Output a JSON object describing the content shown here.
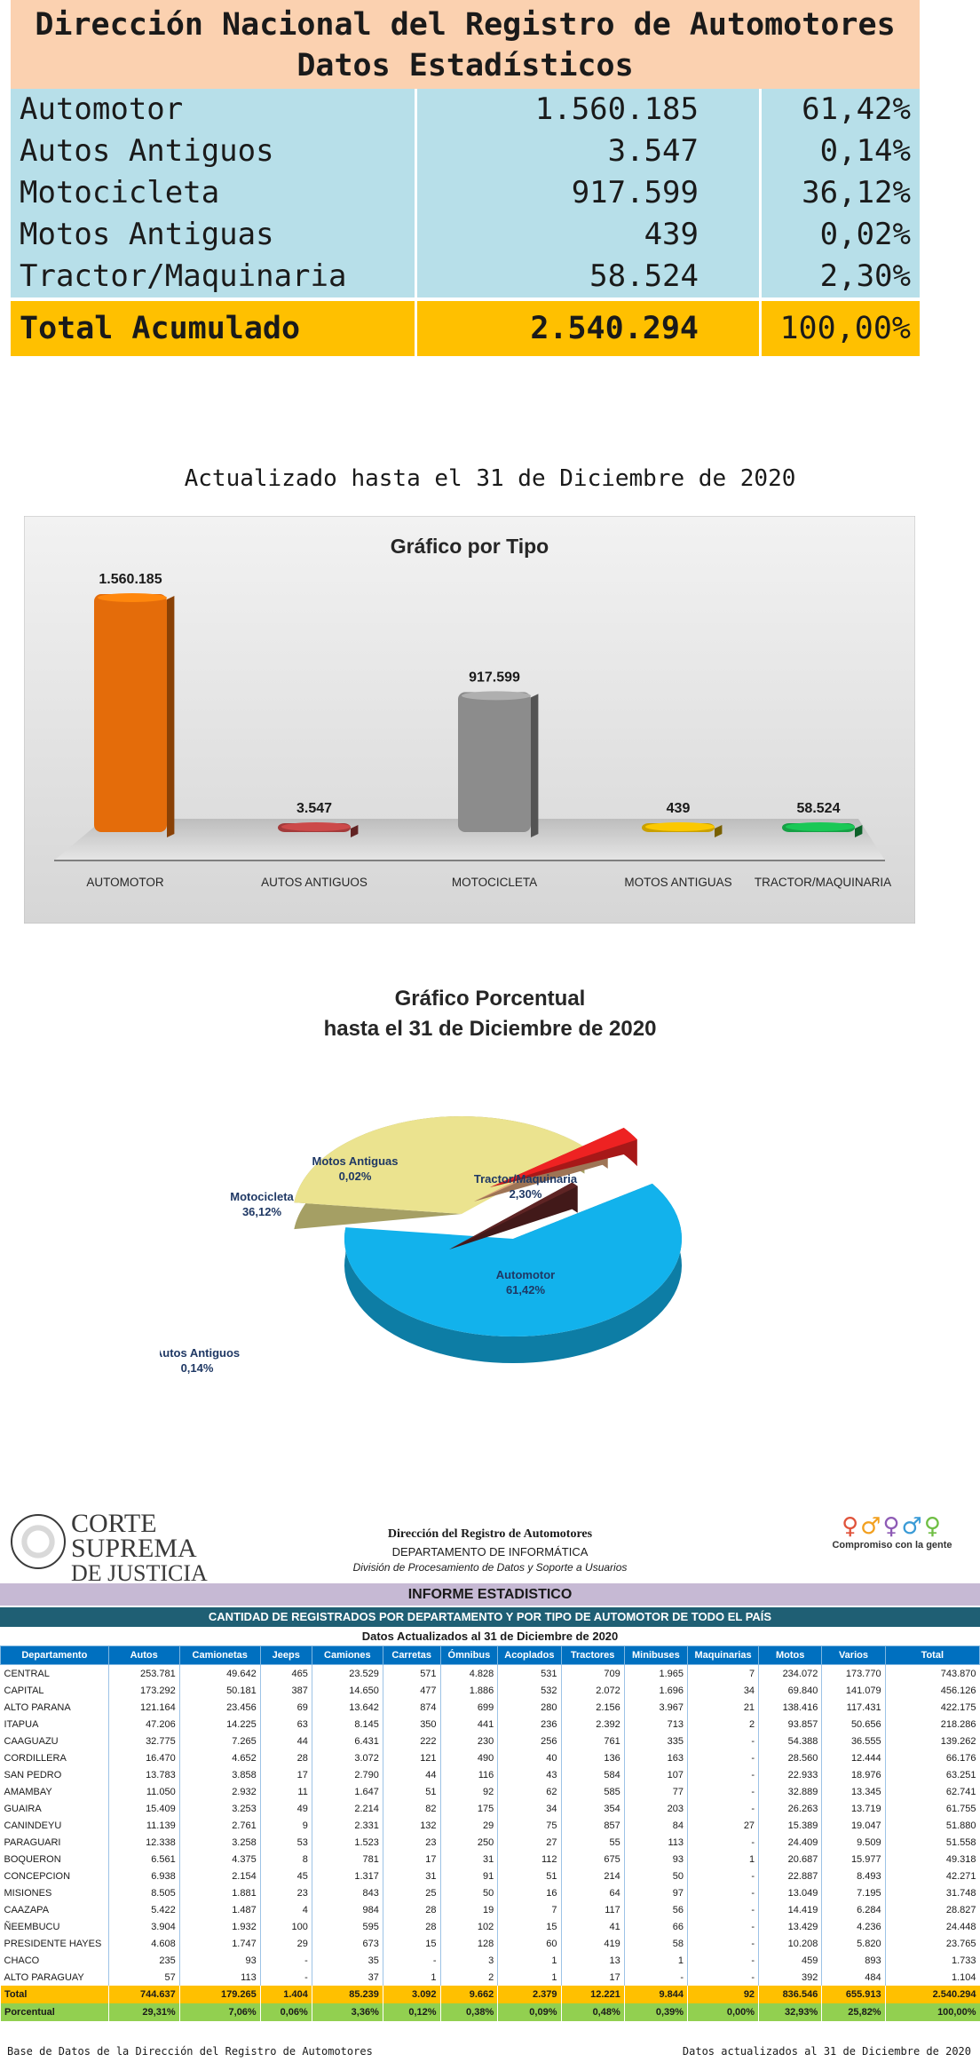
{
  "summary": {
    "title1": "Dirección Nacional del Registro de Automotores",
    "title2": "Datos Estadísticos",
    "rows": [
      {
        "label": "Automotor",
        "value": "1.560.185",
        "pct": "61,42%"
      },
      {
        "label": "Autos Antiguos",
        "value": "3.547",
        "pct": "0,14%"
      },
      {
        "label": "Motocicleta",
        "value": "917.599",
        "pct": "36,12%"
      },
      {
        "label": "Motos Antiguas",
        "value": "439",
        "pct": "0,02%"
      },
      {
        "label": "Tractor/Maquinaria",
        "value": "58.524",
        "pct": "2,30%"
      }
    ],
    "total": {
      "label": "Total Acumulado",
      "value": "2.540.294",
      "pct": "100,00%"
    }
  },
  "updated_text": "Actualizado hasta el 31 de Diciembre de 2020",
  "chart_data": [
    {
      "type": "bar",
      "title": "Gráfico por Tipo",
      "categories": [
        "AUTOMOTOR",
        "AUTOS ANTIGUOS",
        "MOTOCICLETA",
        "MOTOS ANTIGUAS",
        "TRACTOR/MAQUINARIA"
      ],
      "values": [
        1560185,
        3547,
        917599,
        439,
        58524
      ],
      "value_labels": [
        "1.560.185",
        "3.547",
        "917.599",
        "439",
        "58.524"
      ],
      "colors": [
        "#e46c0a",
        "#a33a3a",
        "#8c8c8c",
        "#c9a000",
        "#15a045"
      ],
      "ylim": [
        0,
        1560185
      ],
      "grid": false,
      "legend": "none"
    },
    {
      "type": "pie",
      "title_line1": "Gráfico Porcentual",
      "title_line2": "hasta el 31 de Diciembre de 2020",
      "slices": [
        {
          "label": "Automotor",
          "pct_label": "61,42%",
          "value": 61.42,
          "color": "#12b2ec"
        },
        {
          "label": "Motocicleta",
          "pct_label": "36,12%",
          "value": 36.12,
          "color": "#ebe38f"
        },
        {
          "label": "Autos Antiguos",
          "pct_label": "0,14%",
          "value": 0.14,
          "color": "#5e2424"
        },
        {
          "label": "Motos Antiguas",
          "pct_label": "0,02%",
          "value": 0.02,
          "color": "#e2a67a"
        },
        {
          "label": "Tractor/Maquinaria",
          "pct_label": "2,30%",
          "value": 2.3,
          "color": "#ee2222"
        }
      ]
    },
    {
      "type": "table",
      "columns": [
        "Departamento",
        "Autos",
        "Camionetas",
        "Jeeps",
        "Camiones",
        "Carretas",
        "Ómnibus",
        "Acoplados",
        "Tractores",
        "Minibuses",
        "Maquinarias",
        "Motos",
        "Varios",
        "Total"
      ],
      "rows": [
        [
          "CENTRAL",
          "253.781",
          "49.642",
          "465",
          "23.529",
          "571",
          "4.828",
          "531",
          "709",
          "1.965",
          "7",
          "234.072",
          "173.770",
          "743.870"
        ],
        [
          "CAPITAL",
          "173.292",
          "50.181",
          "387",
          "14.650",
          "477",
          "1.886",
          "532",
          "2.072",
          "1.696",
          "34",
          "69.840",
          "141.079",
          "456.126"
        ],
        [
          "ALTO PARANA",
          "121.164",
          "23.456",
          "69",
          "13.642",
          "874",
          "699",
          "280",
          "2.156",
          "3.967",
          "21",
          "138.416",
          "117.431",
          "422.175"
        ],
        [
          "ITAPUA",
          "47.206",
          "14.225",
          "63",
          "8.145",
          "350",
          "441",
          "236",
          "2.392",
          "713",
          "2",
          "93.857",
          "50.656",
          "218.286"
        ],
        [
          "CAAGUAZU",
          "32.775",
          "7.265",
          "44",
          "6.431",
          "222",
          "230",
          "256",
          "761",
          "335",
          "-",
          "54.388",
          "36.555",
          "139.262"
        ],
        [
          "CORDILLERA",
          "16.470",
          "4.652",
          "28",
          "3.072",
          "121",
          "490",
          "40",
          "136",
          "163",
          "-",
          "28.560",
          "12.444",
          "66.176"
        ],
        [
          "SAN PEDRO",
          "13.783",
          "3.858",
          "17",
          "2.790",
          "44",
          "116",
          "43",
          "584",
          "107",
          "-",
          "22.933",
          "18.976",
          "63.251"
        ],
        [
          "AMAMBAY",
          "11.050",
          "2.932",
          "11",
          "1.647",
          "51",
          "92",
          "62",
          "585",
          "77",
          "-",
          "32.889",
          "13.345",
          "62.741"
        ],
        [
          "GUAIRA",
          "15.409",
          "3.253",
          "49",
          "2.214",
          "82",
          "175",
          "34",
          "354",
          "203",
          "-",
          "26.263",
          "13.719",
          "61.755"
        ],
        [
          "CANINDEYU",
          "11.139",
          "2.761",
          "9",
          "2.331",
          "132",
          "29",
          "75",
          "857",
          "84",
          "27",
          "15.389",
          "19.047",
          "51.880"
        ],
        [
          "PARAGUARI",
          "12.338",
          "3.258",
          "53",
          "1.523",
          "23",
          "250",
          "27",
          "55",
          "113",
          "-",
          "24.409",
          "9.509",
          "51.558"
        ],
        [
          "BOQUERON",
          "6.561",
          "4.375",
          "8",
          "781",
          "17",
          "31",
          "112",
          "675",
          "93",
          "1",
          "20.687",
          "15.977",
          "49.318"
        ],
        [
          "CONCEPCION",
          "6.938",
          "2.154",
          "45",
          "1.317",
          "31",
          "91",
          "51",
          "214",
          "50",
          "-",
          "22.887",
          "8.493",
          "42.271"
        ],
        [
          "MISIONES",
          "8.505",
          "1.881",
          "23",
          "843",
          "25",
          "50",
          "16",
          "64",
          "97",
          "-",
          "13.049",
          "7.195",
          "31.748"
        ],
        [
          "CAAZAPA",
          "5.422",
          "1.487",
          "4",
          "984",
          "28",
          "19",
          "7",
          "117",
          "56",
          "-",
          "14.419",
          "6.284",
          "28.827"
        ],
        [
          "ÑEEMBUCU",
          "3.904",
          "1.932",
          "100",
          "595",
          "28",
          "102",
          "15",
          "41",
          "66",
          "-",
          "13.429",
          "4.236",
          "24.448"
        ],
        [
          "PRESIDENTE HAYES",
          "4.608",
          "1.747",
          "29",
          "673",
          "15",
          "128",
          "60",
          "419",
          "58",
          "-",
          "10.208",
          "5.820",
          "23.765"
        ],
        [
          "CHACO",
          "235",
          "93",
          "-",
          "35",
          "-",
          "3",
          "1",
          "13",
          "1",
          "-",
          "459",
          "893",
          "1.733"
        ],
        [
          "ALTO PARAGUAY",
          "57",
          "113",
          "-",
          "37",
          "1",
          "2",
          "1",
          "17",
          "-",
          "-",
          "392",
          "484",
          "1.104"
        ]
      ],
      "total_row": [
        "Total",
        "744.637",
        "179.265",
        "1.404",
        "85.239",
        "3.092",
        "9.662",
        "2.379",
        "12.221",
        "9.844",
        "92",
        "836.546",
        "655.913",
        "2.540.294"
      ],
      "pct_row": [
        "Porcentual",
        "29,31%",
        "7,06%",
        "0,06%",
        "3,36%",
        "0,12%",
        "0,38%",
        "0,09%",
        "0,48%",
        "0,39%",
        "0,00%",
        "32,93%",
        "25,82%",
        "100,00%"
      ]
    }
  ],
  "report": {
    "logo_line1": "CORTE",
    "logo_line2": "SUPREMA",
    "logo_line3": "DE JUSTICIA",
    "header1": "Dirección del Registro de Automotores",
    "header2": "DEPARTAMENTO DE INFORMÁTICA",
    "header3": "División de Procesamiento de Datos y Soporte a Usuarios",
    "slogan": "Compromiso con la gente",
    "band1": "INFORME ESTADISTICO",
    "band2": "CANTIDAD DE REGISTRADOS POR DEPARTAMENTO Y POR TIPO DE AUTOMOTOR DE TODO EL PAÍS",
    "band3": "Datos Actualizados al 31 de Diciembre de 2020",
    "footer_left": "Base de Datos de la Dirección del Registro de Automotores",
    "footer_right": "Datos actualizados al 31 de Diciembre de 2020"
  }
}
